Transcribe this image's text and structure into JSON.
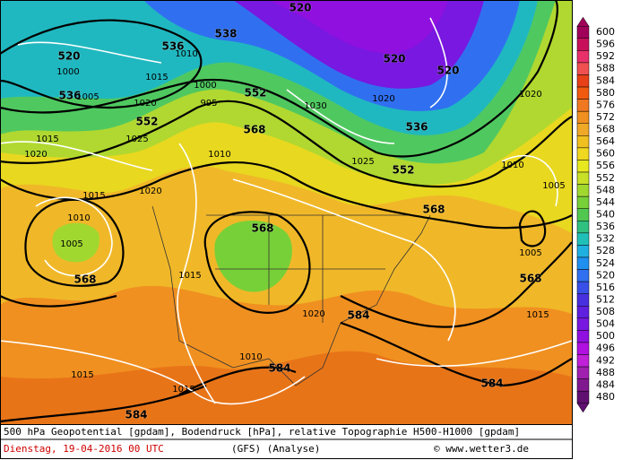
{
  "map": {
    "footer_title": "500 hPa Geopotential [gpdam], Bodendruck [hPa], relative Topographie H500-H1000 [gpdam]",
    "date": "Dienstag, 19-04-2016  00 UTC",
    "model": "(GFS)  (Analyse)",
    "credit": "© www.wetter3.de",
    "geopotential_labels": [
      520,
      536,
      552,
      568,
      536,
      538,
      520,
      520,
      520,
      536,
      552,
      568,
      568,
      568,
      568,
      584,
      584,
      584,
      584,
      552
    ],
    "isobar_labels": [
      1000,
      1005,
      1015,
      1020,
      1025,
      1010,
      1000,
      995,
      1015,
      1020,
      1030,
      1020,
      1025,
      1010,
      1005,
      1010,
      1005,
      1015,
      1020,
      1015,
      1010,
      1015,
      1015,
      1015,
      1020,
      1005,
      1010,
      1020
    ]
  },
  "legend": {
    "levels": [
      600,
      596,
      592,
      588,
      584,
      580,
      576,
      572,
      568,
      564,
      560,
      556,
      552,
      548,
      544,
      540,
      536,
      532,
      528,
      524,
      520,
      516,
      512,
      508,
      504,
      500,
      496,
      492,
      488,
      484,
      480
    ],
    "colors": [
      "#a0005a",
      "#c8105a",
      "#e8306a",
      "#f05050",
      "#e84018",
      "#f05a10",
      "#f07820",
      "#f09020",
      "#f0a828",
      "#f0c020",
      "#f0d820",
      "#e8e820",
      "#c8e028",
      "#a0d830",
      "#78d038",
      "#50c850",
      "#30c080",
      "#20c0b8",
      "#20b0e0",
      "#2090f0",
      "#3070f0",
      "#3850e8",
      "#4830e0",
      "#6020e0",
      "#7818e0",
      "#9010e0",
      "#b010e0",
      "#c020d8",
      "#a020b0",
      "#801890",
      "#601070"
    ]
  }
}
